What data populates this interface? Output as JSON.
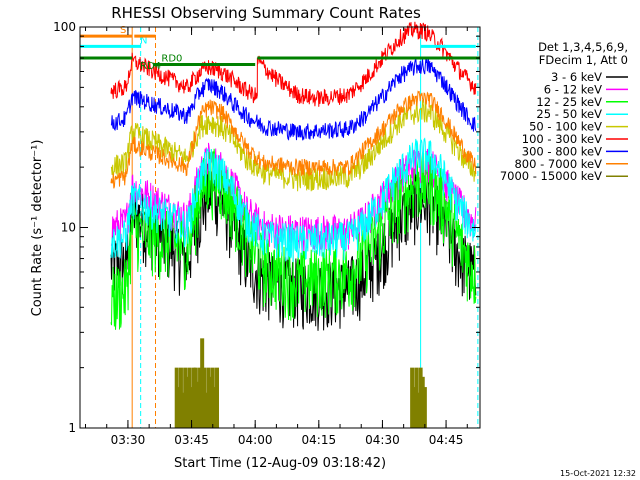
{
  "chart_data": {
    "type": "line",
    "title": "RHESSI Observing Summary Count Rates",
    "xlabel": "Start Time (12-Aug-09 03:18:42)",
    "ylabel": "Count Rate (s⁻¹ detector⁻¹)",
    "y_scale": "log",
    "ylim": [
      1,
      100
    ],
    "xlim": [
      "03:18:42",
      "04:53:00"
    ],
    "x_ticks": [
      "03:30",
      "03:45",
      "04:00",
      "04:15",
      "04:30",
      "04:45"
    ],
    "y_ticks": [
      "1",
      "10",
      "100"
    ],
    "grid": false,
    "legend_header": [
      "Det 1,3,4,5,6,9,",
      "FDecim 1, Att 0"
    ],
    "legend_placement": "right",
    "footer_date": "15-Oct-2021 12:32",
    "series": [
      {
        "name": "3 - 6 keV",
        "color": "#000000",
        "noise": 0.4,
        "points": [
          [
            "03:26:00",
            6.5
          ],
          [
            "03:29:30",
            6.8
          ],
          [
            "03:31:00",
            12
          ],
          [
            "03:44:00",
            7
          ],
          [
            "03:47:00",
            12
          ],
          [
            "03:49:00",
            15.5
          ],
          [
            "03:52:00",
            14
          ],
          [
            "03:55:00",
            10
          ],
          [
            "03:58:00",
            7
          ],
          [
            "04:02:00",
            5.5
          ],
          [
            "04:10:00",
            5
          ],
          [
            "04:22:00",
            5
          ],
          [
            "04:26:00",
            6
          ],
          [
            "04:30:00",
            8
          ],
          [
            "04:34:00",
            11
          ],
          [
            "04:38:00",
            13.5
          ],
          [
            "04:41:00",
            13.5
          ],
          [
            "04:44:00",
            11
          ],
          [
            "04:47:00",
            8
          ],
          [
            "04:50:00",
            6.5
          ],
          [
            "04:52:00",
            5.8
          ]
        ]
      },
      {
        "name": "6 - 12 keV",
        "color": "#ff00ff",
        "noise": 0.22,
        "points": [
          [
            "03:26:00",
            10
          ],
          [
            "03:29:30",
            10.5
          ],
          [
            "03:31:00",
            16
          ],
          [
            "03:44:00",
            11
          ],
          [
            "03:47:00",
            19
          ],
          [
            "03:49:00",
            22
          ],
          [
            "03:52:00",
            20
          ],
          [
            "03:55:00",
            16
          ],
          [
            "03:58:00",
            12
          ],
          [
            "04:02:00",
            10
          ],
          [
            "04:10:00",
            9.5
          ],
          [
            "04:22:00",
            9.5
          ],
          [
            "04:26:00",
            11
          ],
          [
            "04:30:00",
            14
          ],
          [
            "04:34:00",
            18
          ],
          [
            "04:38:00",
            21
          ],
          [
            "04:41:00",
            21
          ],
          [
            "04:44:00",
            18
          ],
          [
            "04:47:00",
            14
          ],
          [
            "04:50:00",
            11.5
          ],
          [
            "04:52:00",
            10.5
          ]
        ]
      },
      {
        "name": "12 - 25 keV",
        "color": "#00ff00",
        "noise": 0.4,
        "points": [
          [
            "03:26:00",
            4.5
          ],
          [
            "03:29:30",
            5
          ],
          [
            "03:31:00",
            10
          ],
          [
            "03:44:00",
            8
          ],
          [
            "03:47:00",
            15
          ],
          [
            "03:49:00",
            18.5
          ],
          [
            "03:52:00",
            17
          ],
          [
            "03:55:00",
            13
          ],
          [
            "03:58:00",
            9
          ],
          [
            "04:02:00",
            6.5
          ],
          [
            "04:10:00",
            5.5
          ],
          [
            "04:22:00",
            6
          ],
          [
            "04:26:00",
            7.5
          ],
          [
            "04:30:00",
            10
          ],
          [
            "04:34:00",
            14
          ],
          [
            "04:38:00",
            17
          ],
          [
            "04:41:00",
            17
          ],
          [
            "04:44:00",
            14
          ],
          [
            "04:47:00",
            10
          ],
          [
            "04:50:00",
            7
          ],
          [
            "04:52:00",
            6
          ]
        ]
      },
      {
        "name": "25 - 50 keV",
        "color": "#00ffff",
        "noise": 0.22,
        "points": [
          [
            "03:26:00",
            8.5
          ],
          [
            "03:29:30",
            9
          ],
          [
            "03:31:00",
            14
          ],
          [
            "03:44:00",
            10
          ],
          [
            "03:47:00",
            18
          ],
          [
            "03:49:00",
            21
          ],
          [
            "03:52:00",
            19
          ],
          [
            "03:55:00",
            15
          ],
          [
            "03:58:00",
            11
          ],
          [
            "04:02:00",
            9
          ],
          [
            "04:10:00",
            8.5
          ],
          [
            "04:22:00",
            8.8
          ],
          [
            "04:26:00",
            10.5
          ],
          [
            "04:30:00",
            14
          ],
          [
            "04:34:00",
            19
          ],
          [
            "04:38:00",
            23
          ],
          [
            "04:41:00",
            23
          ],
          [
            "04:44:00",
            19
          ],
          [
            "04:47:00",
            14
          ],
          [
            "04:50:00",
            11
          ],
          [
            "04:52:00",
            9.5
          ]
        ]
      },
      {
        "name": "50 - 100 keV",
        "color": "#c8c800",
        "noise": 0.14,
        "points": [
          [
            "03:26:00",
            20
          ],
          [
            "03:29:30",
            21
          ],
          [
            "03:31:00",
            30
          ],
          [
            "03:44:00",
            22
          ],
          [
            "03:47:00",
            32
          ],
          [
            "03:49:00",
            34
          ],
          [
            "03:52:00",
            32
          ],
          [
            "03:55:00",
            27
          ],
          [
            "03:58:00",
            22
          ],
          [
            "04:02:00",
            19
          ],
          [
            "04:10:00",
            17.5
          ],
          [
            "04:22:00",
            18
          ],
          [
            "04:26:00",
            21
          ],
          [
            "04:30:00",
            27
          ],
          [
            "04:34:00",
            34
          ],
          [
            "04:38:00",
            38
          ],
          [
            "04:41:00",
            38
          ],
          [
            "04:44:00",
            32
          ],
          [
            "04:47:00",
            26
          ],
          [
            "04:50:00",
            21
          ],
          [
            "04:52:00",
            19
          ]
        ]
      },
      {
        "name": "100 - 300 keV",
        "color": "#ff0000",
        "noise": 0.1,
        "points": [
          [
            "03:26:00",
            48
          ],
          [
            "03:29:30",
            50
          ],
          [
            "03:31:00",
            68
          ],
          [
            "03:44:00",
            50
          ],
          [
            "03:47:00",
            60
          ],
          [
            "03:49:00",
            63
          ],
          [
            "03:52:00",
            60
          ],
          [
            "03:55:00",
            54
          ],
          [
            "03:58:00",
            48
          ],
          [
            "04:00:30",
            45
          ],
          [
            "04:00:31",
            68
          ],
          [
            "04:05:00",
            55
          ],
          [
            "04:10:00",
            46
          ],
          [
            "04:15:00",
            44
          ],
          [
            "04:22:00",
            46
          ],
          [
            "04:26:00",
            55
          ],
          [
            "04:30:00",
            70
          ],
          [
            "04:34:00",
            88
          ],
          [
            "04:37:00",
            97
          ],
          [
            "04:40:00",
            96
          ],
          [
            "04:44:00",
            80
          ],
          [
            "04:47:00",
            65
          ],
          [
            "04:50:00",
            55
          ],
          [
            "04:52:00",
            50
          ]
        ]
      },
      {
        "name": "300 - 800 keV",
        "color": "#0000ff",
        "noise": 0.1,
        "points": [
          [
            "03:26:00",
            33
          ],
          [
            "03:29:30",
            35
          ],
          [
            "03:31:00",
            45
          ],
          [
            "03:44:00",
            36
          ],
          [
            "03:47:00",
            48
          ],
          [
            "03:49:00",
            52
          ],
          [
            "03:52:00",
            48
          ],
          [
            "03:55:00",
            41
          ],
          [
            "03:58:00",
            36
          ],
          [
            "04:02:00",
            32
          ],
          [
            "04:10:00",
            30
          ],
          [
            "04:22:00",
            31
          ],
          [
            "04:26:00",
            36
          ],
          [
            "04:30:00",
            45
          ],
          [
            "04:34:00",
            57
          ],
          [
            "04:38:00",
            64
          ],
          [
            "04:41:00",
            64
          ],
          [
            "04:44:00",
            55
          ],
          [
            "04:47:00",
            44
          ],
          [
            "04:50:00",
            36
          ],
          [
            "04:52:00",
            32
          ]
        ]
      },
      {
        "name": "800 - 7000 keV",
        "color": "#ff8000",
        "noise": 0.1,
        "points": [
          [
            "03:26:00",
            17
          ],
          [
            "03:29:30",
            18
          ],
          [
            "03:31:00",
            26
          ],
          [
            "03:44:00",
            20
          ],
          [
            "03:47:00",
            36
          ],
          [
            "03:49:00",
            40
          ],
          [
            "03:52:00",
            38
          ],
          [
            "03:55:00",
            31
          ],
          [
            "03:58:00",
            25
          ],
          [
            "04:02:00",
            21
          ],
          [
            "04:10:00",
            20
          ],
          [
            "04:22:00",
            20
          ],
          [
            "04:26:00",
            25
          ],
          [
            "04:30:00",
            31
          ],
          [
            "04:34:00",
            39
          ],
          [
            "04:38:00",
            44
          ],
          [
            "04:41:00",
            44
          ],
          [
            "04:44:00",
            37
          ],
          [
            "04:47:00",
            29
          ],
          [
            "04:50:00",
            23
          ],
          [
            "04:52:00",
            20
          ]
        ]
      },
      {
        "name": "7000 - 15000 keV",
        "color": "#808000",
        "style": "bars",
        "points": [
          [
            "03:41:30",
            2.0
          ],
          [
            "03:42:00",
            1.6
          ],
          [
            "03:42:30",
            2.0
          ],
          [
            "03:43:00",
            1.5
          ],
          [
            "03:43:30",
            2.0
          ],
          [
            "03:44:00",
            1.8
          ],
          [
            "03:44:30",
            2.0
          ],
          [
            "03:45:00",
            1.6
          ],
          [
            "03:45:30",
            2.0
          ],
          [
            "03:46:00",
            2.0
          ],
          [
            "03:46:30",
            1.7
          ],
          [
            "03:47:00",
            2.0
          ],
          [
            "03:47:30",
            2.8
          ],
          [
            "03:48:00",
            2.0
          ],
          [
            "03:48:30",
            1.5
          ],
          [
            "03:49:00",
            2.0
          ],
          [
            "03:49:30",
            1.8
          ],
          [
            "03:50:00",
            2.0
          ],
          [
            "03:50:30",
            1.6
          ],
          [
            "03:51:00",
            2.0
          ],
          [
            "04:37:00",
            2.0
          ],
          [
            "04:37:30",
            1.6
          ],
          [
            "04:38:00",
            2.0
          ],
          [
            "04:38:30",
            1.5
          ],
          [
            "04:39:00",
            2.0
          ],
          [
            "04:39:30",
            1.8
          ],
          [
            "04:40:00",
            1.6
          ]
        ]
      }
    ],
    "segments": [
      {
        "label": "S",
        "color": "#ff8000",
        "from": "03:18:42",
        "to": "03:31:00",
        "y": 90
      },
      {
        "label": "N",
        "color": "#00ffff",
        "from": "03:18:42",
        "to": "03:33:00",
        "y": 80
      },
      {
        "label": "",
        "color": "#00ffff",
        "from": "04:39:00",
        "to": "04:52:00",
        "y": 80
      },
      {
        "label": "",
        "color": "#ff8000",
        "from": "03:31:30",
        "to": "03:36:30",
        "y": 90
      },
      {
        "label": "RD4",
        "color": "#008000",
        "from": "03:18:42",
        "to": "03:31:00",
        "y": 70
      },
      {
        "label": "RD0",
        "color": "#008000",
        "from": "03:36:00",
        "to": "04:00:00",
        "y": 65
      },
      {
        "label": "",
        "color": "#008000",
        "from": "04:00:30",
        "to": "04:53:00",
        "y": 70
      }
    ],
    "vlines": [
      {
        "t": "03:31:00",
        "color": "#ff8000",
        "dashed": false
      },
      {
        "t": "03:33:00",
        "color": "#00ffff",
        "dashed": true
      },
      {
        "t": "03:36:30",
        "color": "#ff8000",
        "dashed": true
      },
      {
        "t": "04:39:00",
        "color": "#00ffff",
        "dashed": false
      },
      {
        "t": "04:52:30",
        "color": "#00ffff",
        "dashed": true
      }
    ]
  }
}
